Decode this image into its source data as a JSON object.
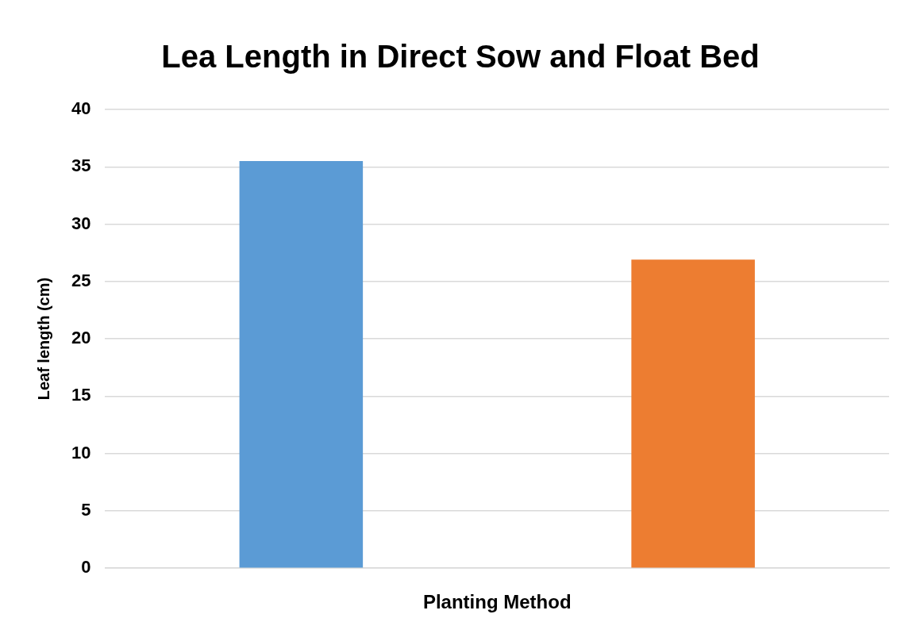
{
  "chart_data": {
    "type": "bar",
    "title": "Lea Length in Direct Sow and Float Bed",
    "xlabel": "Planting Method",
    "ylabel": "Leaf length (cm)",
    "categories": [
      null
    ],
    "series": [
      {
        "color": "#5b9bd5",
        "values": [
          35.5
        ]
      },
      {
        "color": "#ed7d31",
        "values": [
          26.9
        ]
      }
    ],
    "ylim": [
      0,
      40
    ],
    "yticks": [
      0,
      5,
      10,
      15,
      20,
      25,
      30,
      35,
      40
    ],
    "grid": "y",
    "legend": false
  }
}
